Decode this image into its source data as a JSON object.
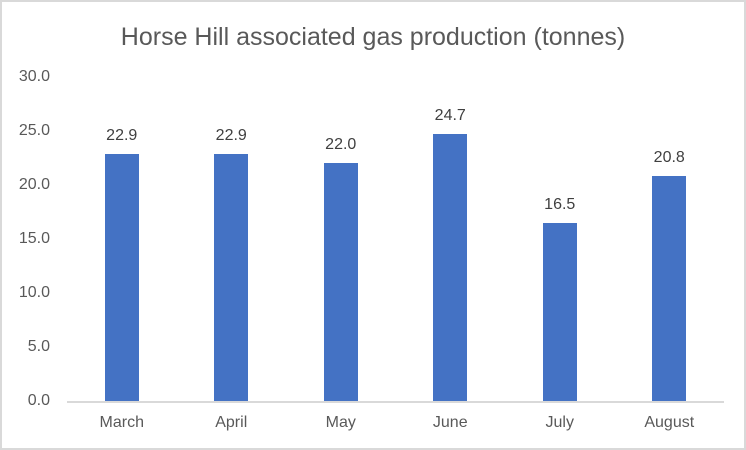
{
  "frame": {
    "background": "#ffffff",
    "border_color": "#d9d9d9"
  },
  "chart_data": {
    "type": "bar",
    "title": "Horse Hill associated gas production (tonnes)",
    "categories": [
      "March",
      "April",
      "May",
      "June",
      "July",
      "August"
    ],
    "values": [
      22.9,
      22.9,
      22.0,
      24.7,
      16.5,
      20.8
    ],
    "data_labels": [
      "22.9",
      "22.9",
      "22.0",
      "24.7",
      "16.5",
      "20.8"
    ],
    "xlabel": "",
    "ylabel": "",
    "ylim": [
      0,
      30
    ],
    "ytick_step": 5,
    "ytick_labels": [
      "0.0",
      "5.0",
      "10.0",
      "15.0",
      "20.0",
      "25.0",
      "30.0"
    ],
    "grid": false,
    "legend": false,
    "colors": {
      "bar": "#4472c4",
      "title": "#595959",
      "axis_labels": "#595959",
      "data_labels": "#404040",
      "axis_line": "#d9d9d9"
    }
  }
}
